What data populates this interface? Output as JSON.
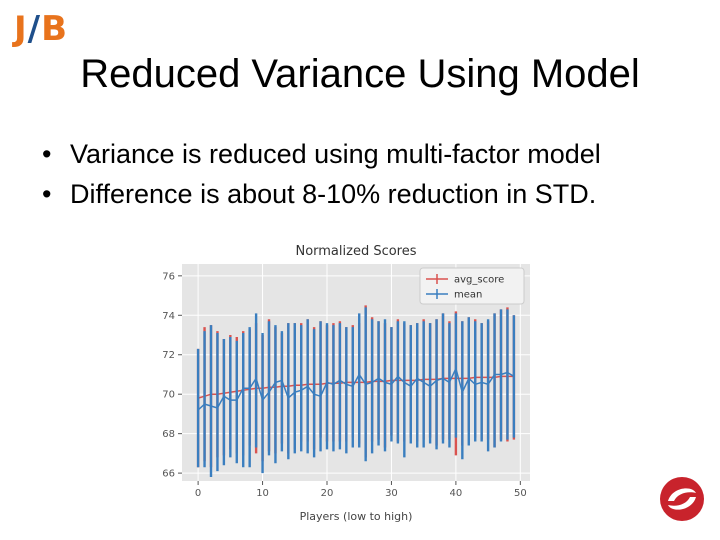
{
  "logo": {
    "left": "J",
    "slash": "/",
    "right": "B"
  },
  "slide": {
    "title": "Reduced Variance Using Model",
    "bullets": [
      "Variance is reduced using multi-factor model",
      "Difference is about 8-10% reduction in STD."
    ]
  },
  "colors": {
    "avg_score": "#d9534f",
    "mean": "#3a7ebf",
    "plot_bg": "#e5e5e5",
    "logo_orange": "#e8731c",
    "logo_blue": "#1f4f8b",
    "badge_red": "#c8232c"
  },
  "chart_data": {
    "type": "errorbar-line",
    "title": "Normalized Scores",
    "xlabel": "Players (low to high)",
    "ylabel": "",
    "xlim": [
      -2.5,
      51.5
    ],
    "ylim": [
      65.6,
      76.6
    ],
    "xticks": [
      0,
      10,
      20,
      30,
      40,
      50
    ],
    "yticks": [
      66,
      68,
      70,
      72,
      74,
      76
    ],
    "grid": true,
    "legend_position": "top-right",
    "series": [
      {
        "name": "avg_score",
        "x": [
          0,
          1,
          2,
          3,
          4,
          5,
          6,
          7,
          8,
          9,
          10,
          11,
          12,
          13,
          14,
          15,
          16,
          17,
          18,
          19,
          20,
          21,
          22,
          23,
          24,
          25,
          26,
          27,
          28,
          29,
          30,
          31,
          32,
          33,
          34,
          35,
          36,
          37,
          38,
          39,
          40,
          41,
          42,
          43,
          44,
          45,
          46,
          47,
          48,
          49
        ],
        "mean": [
          69.8,
          69.9,
          70.0,
          70.0,
          70.05,
          70.1,
          70.15,
          70.2,
          70.25,
          70.3,
          70.3,
          70.35,
          70.35,
          70.4,
          70.4,
          70.45,
          70.45,
          70.5,
          70.5,
          70.5,
          70.55,
          70.55,
          70.55,
          70.6,
          70.6,
          70.6,
          70.6,
          70.65,
          70.65,
          70.65,
          70.7,
          70.7,
          70.7,
          70.7,
          70.7,
          70.75,
          70.75,
          70.75,
          70.8,
          70.8,
          70.8,
          70.8,
          70.8,
          70.85,
          70.85,
          70.85,
          70.85,
          70.9,
          70.9,
          70.9
        ],
        "upper": [
          72.3,
          73.4,
          73.5,
          73.2,
          72.8,
          73.0,
          72.9,
          73.2,
          73.3,
          73.6,
          73.0,
          73.8,
          73.4,
          73.1,
          73.6,
          73.6,
          73.6,
          73.8,
          73.4,
          73.7,
          73.5,
          73.6,
          73.7,
          73.4,
          73.5,
          73.6,
          74.5,
          73.9,
          73.7,
          73.6,
          73.4,
          73.8,
          73.6,
          73.5,
          73.6,
          73.8,
          73.6,
          73.8,
          74.1,
          73.7,
          74.2,
          73.7,
          73.9,
          73.8,
          73.6,
          73.7,
          74.1,
          74.3,
          74.4,
          74.0
        ],
        "lower": [
          66.3,
          66.6,
          66.3,
          66.8,
          66.9,
          67.2,
          67.0,
          66.9,
          67.4,
          67.0,
          66.6,
          67.1,
          67.0,
          67.5,
          67.0,
          67.2,
          67.6,
          67.6,
          67.2,
          67.8,
          67.6,
          67.6,
          67.6,
          67.6,
          67.8,
          67.5,
          66.8,
          67.6,
          67.7,
          67.3,
          67.9,
          67.6,
          67.6,
          67.8,
          67.6,
          67.7,
          67.8,
          67.4,
          67.7,
          67.7,
          66.9,
          67.4,
          68.1,
          67.8,
          67.7,
          67.7,
          67.3,
          67.7,
          67.6,
          67.7
        ]
      },
      {
        "name": "mean",
        "x": [
          0,
          1,
          2,
          3,
          4,
          5,
          6,
          7,
          8,
          9,
          10,
          11,
          12,
          13,
          14,
          15,
          16,
          17,
          18,
          19,
          20,
          21,
          22,
          23,
          24,
          25,
          26,
          27,
          28,
          29,
          30,
          31,
          32,
          33,
          34,
          35,
          36,
          37,
          38,
          39,
          40,
          41,
          42,
          43,
          44,
          45,
          46,
          47,
          48,
          49
        ],
        "mean": [
          69.2,
          69.5,
          69.4,
          69.3,
          69.9,
          69.7,
          69.7,
          70.3,
          70.3,
          70.8,
          69.7,
          70.1,
          70.6,
          70.7,
          69.8,
          70.1,
          70.2,
          70.4,
          70.0,
          69.9,
          70.6,
          70.5,
          70.7,
          70.5,
          70.4,
          71.0,
          70.5,
          70.6,
          70.8,
          70.6,
          70.5,
          70.9,
          70.6,
          70.4,
          70.8,
          70.6,
          70.4,
          70.7,
          70.8,
          70.6,
          71.3,
          70.1,
          70.8,
          70.5,
          70.6,
          70.5,
          71.0,
          71.0,
          71.1,
          70.9
        ],
        "upper": [
          72.3,
          73.2,
          73.5,
          73.1,
          72.8,
          72.9,
          72.7,
          73.1,
          73.4,
          74.1,
          73.1,
          73.7,
          73.5,
          73.2,
          73.6,
          73.6,
          73.5,
          73.8,
          73.3,
          73.7,
          73.6,
          73.5,
          73.6,
          73.4,
          73.4,
          74.1,
          74.4,
          73.8,
          73.7,
          73.8,
          73.4,
          73.7,
          73.7,
          73.5,
          73.6,
          73.7,
          73.6,
          73.8,
          74.1,
          73.6,
          74.1,
          73.7,
          73.9,
          73.7,
          73.6,
          73.8,
          74.1,
          74.3,
          74.3,
          74.0
        ],
        "lower": [
          66.3,
          66.3,
          65.8,
          66.1,
          66.4,
          66.8,
          66.5,
          66.3,
          66.3,
          67.3,
          66.0,
          66.9,
          66.5,
          67.1,
          66.7,
          67.0,
          67.1,
          67.0,
          66.8,
          67.1,
          67.2,
          67.1,
          67.2,
          67.0,
          67.3,
          67.3,
          66.6,
          67.0,
          67.4,
          67.1,
          67.6,
          67.5,
          66.8,
          67.5,
          67.3,
          67.3,
          67.5,
          67.2,
          67.5,
          67.3,
          67.8,
          66.7,
          67.4,
          67.6,
          67.6,
          67.1,
          67.3,
          67.6,
          67.7,
          67.8
        ]
      }
    ]
  }
}
